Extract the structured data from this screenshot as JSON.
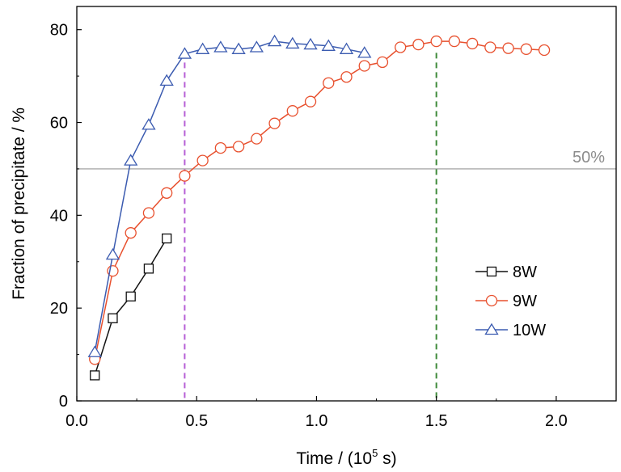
{
  "chart_data": {
    "type": "line",
    "xlabel_prefix": "Time / (10",
    "xlabel_exp": "5",
    "xlabel_suffix": " s)",
    "ylabel": "Fraction of precipitate / %",
    "xlim": [
      0,
      2.25
    ],
    "ylim": [
      0,
      85
    ],
    "x_ticks": [
      "0.0",
      "0.5",
      "1.0",
      "1.5",
      "2.0"
    ],
    "x_tick_values": [
      0,
      0.5,
      1.0,
      1.5,
      2.0
    ],
    "y_ticks": [
      "0",
      "20",
      "40",
      "60",
      "80"
    ],
    "y_tick_values": [
      0,
      20,
      40,
      60,
      80
    ],
    "grid": false,
    "legend_position": "bottom-right",
    "reference_line": {
      "y": 50,
      "label": "50%",
      "color": "#aaaaaa"
    },
    "vertical_lines": [
      {
        "x": 0.45,
        "color": "#b65fd6",
        "style": "dashed"
      },
      {
        "x": 1.5,
        "color": "#3f8a3a",
        "style": "dashed"
      }
    ],
    "series": [
      {
        "name": "8W",
        "color": "#111111",
        "marker": "square",
        "x": [
          0.075,
          0.15,
          0.225,
          0.3,
          0.375
        ],
        "y": [
          5.5,
          17.8,
          22.5,
          28.5,
          35.0
        ]
      },
      {
        "name": "9W",
        "color": "#e8502e",
        "marker": "circle",
        "x": [
          0.075,
          0.15,
          0.225,
          0.3,
          0.375,
          0.45,
          0.525,
          0.6,
          0.675,
          0.75,
          0.825,
          0.9,
          0.975,
          1.05,
          1.125,
          1.2,
          1.275,
          1.35,
          1.425,
          1.5,
          1.575,
          1.65,
          1.725,
          1.8,
          1.875,
          1.95
        ],
        "y": [
          9.0,
          28.0,
          36.2,
          40.5,
          44.8,
          48.5,
          51.8,
          54.5,
          54.8,
          56.5,
          59.8,
          62.5,
          64.5,
          68.5,
          69.8,
          72.2,
          73.0,
          76.2,
          76.8,
          77.5,
          77.5,
          77.0,
          76.2,
          76.0,
          75.8,
          75.6
        ]
      },
      {
        "name": "10W",
        "color": "#3b5bb0",
        "marker": "triangle",
        "x": [
          0.075,
          0.15,
          0.225,
          0.3,
          0.375,
          0.45,
          0.525,
          0.6,
          0.675,
          0.75,
          0.825,
          0.9,
          0.975,
          1.05,
          1.125,
          1.2
        ],
        "y": [
          10.5,
          31.5,
          51.8,
          59.5,
          69.0,
          74.8,
          75.8,
          76.2,
          75.8,
          76.2,
          77.5,
          77.0,
          76.8,
          76.5,
          75.8,
          75.0
        ]
      }
    ]
  }
}
